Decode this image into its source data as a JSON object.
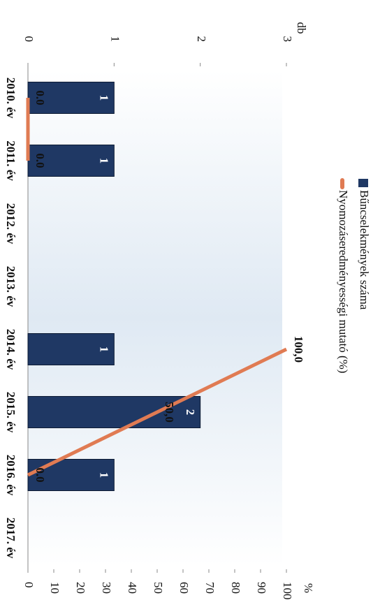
{
  "chart_data": {
    "type": "bar",
    "categories": [
      "2010. év",
      "2011. év",
      "2012. év",
      "2013. év",
      "2014. év",
      "2015. év",
      "2016. év",
      "2017. év"
    ],
    "series": [
      {
        "name": "Bűncselekmények száma",
        "type": "bar",
        "color": "#1f3864",
        "values": [
          1,
          1,
          null,
          null,
          1,
          2,
          1,
          null
        ]
      },
      {
        "name": "Nyomozáseredményességi mutató (%)",
        "type": "line",
        "axis": "y2",
        "color": "#e07b53",
        "values": [
          0,
          0,
          null,
          null,
          100,
          50,
          0,
          null
        ],
        "value_labels": [
          "0.0",
          "0.0",
          null,
          null,
          "100,0",
          "50,0",
          "0.0",
          null
        ]
      }
    ],
    "y_label": "db",
    "y2_label": "%",
    "ylim": [
      0,
      3
    ],
    "yticks": [
      0,
      1,
      2,
      3
    ],
    "y2lim": [
      0,
      100
    ],
    "y2ticks": [
      0,
      10,
      20,
      30,
      40,
      50,
      60,
      70,
      80,
      90,
      100
    ],
    "legend": "top"
  }
}
